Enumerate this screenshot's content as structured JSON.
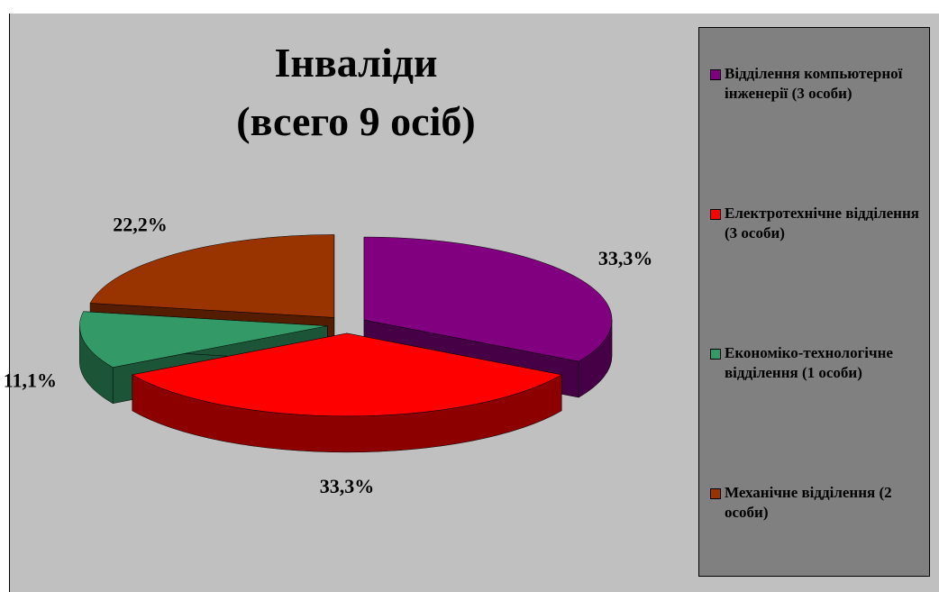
{
  "chart_data": {
    "type": "pie",
    "title": [
      "Інваліди",
      "(всего 9 осіб)"
    ],
    "categories": [
      "Відділення компьютерної інженерії (3 особи)",
      "Електротехнічне відділення (3 особи)",
      "Економіко-технологічне відділення (1 особи)",
      "Механічне відділення (2 особи)"
    ],
    "values": [
      33.3,
      33.3,
      11.1,
      22.2
    ],
    "value_labels": [
      "33,3%",
      "33,3%",
      "11,1%",
      "22,2%"
    ],
    "colors": [
      "#800080",
      "#ff0000",
      "#339966",
      "#993300"
    ],
    "legend": "right"
  }
}
